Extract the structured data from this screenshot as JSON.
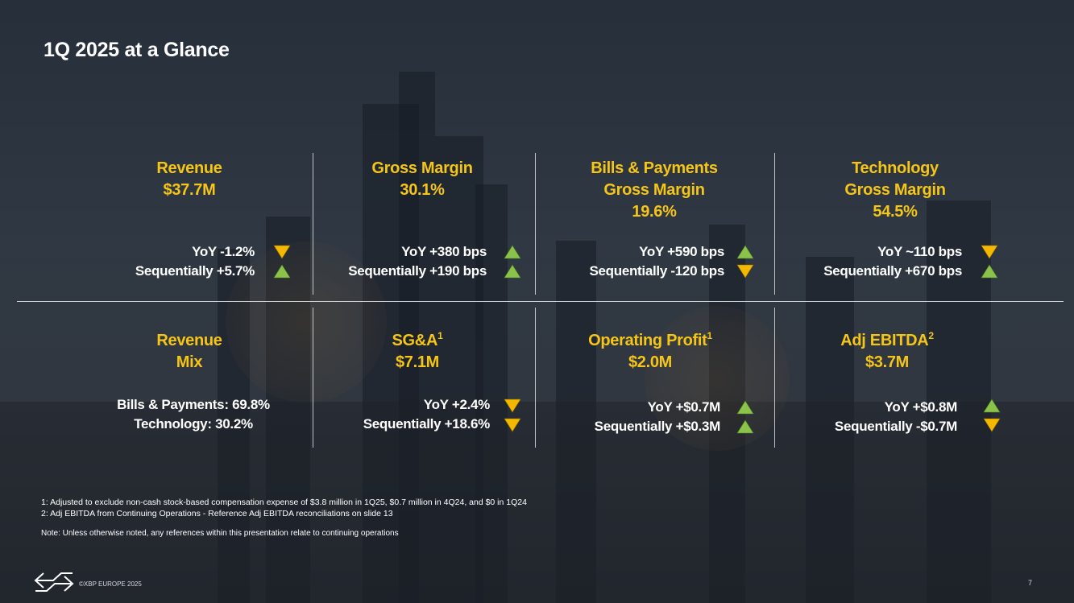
{
  "title": "1Q 2025 at a Glance",
  "colors": {
    "accent": "#f5c518",
    "up": "#8bc34a",
    "down": "#f5b800",
    "text": "#ffffff"
  },
  "cards": {
    "revenue": {
      "heading": [
        "Revenue",
        "$37.7M"
      ],
      "metrics": [
        {
          "text": "YoY -1.2%",
          "direction": "down"
        },
        {
          "text": "Sequentially +5.7%",
          "direction": "up"
        }
      ]
    },
    "gross_margin": {
      "heading": [
        "Gross Margin",
        "30.1%"
      ],
      "metrics": [
        {
          "text": "YoY  +380 bps",
          "direction": "up"
        },
        {
          "text": "Sequentially +190 bps",
          "direction": "up"
        }
      ]
    },
    "bills_payments": {
      "heading": [
        "Bills & Payments",
        "Gross Margin",
        "19.6%"
      ],
      "metrics": [
        {
          "text": "YoY  +590 bps",
          "direction": "up"
        },
        {
          "text": "Sequentially -120 bps",
          "direction": "down"
        }
      ]
    },
    "technology": {
      "heading": [
        "Technology",
        "Gross Margin",
        "54.5%"
      ],
      "metrics": [
        {
          "text": "YoY  ~110 bps",
          "direction": "down"
        },
        {
          "text": "Sequentially +670 bps",
          "direction": "up"
        }
      ]
    },
    "revenue_mix": {
      "heading": [
        "Revenue",
        "Mix"
      ],
      "lines": [
        "Bills & Payments: 69.8%",
        "Technology: 30.2%"
      ]
    },
    "sga": {
      "heading_label": "SG&A",
      "heading_sup": "1",
      "heading_value": "$7.1M",
      "metrics": [
        {
          "text": "YoY +2.4%",
          "direction": "down"
        },
        {
          "text": "Sequentially +18.6%",
          "direction": "down"
        }
      ]
    },
    "operating_profit": {
      "heading_label": "Operating Profit",
      "heading_sup": "1",
      "heading_value": "$2.0M",
      "metrics": [
        {
          "text": "YoY +$0.7M",
          "direction": "up"
        },
        {
          "text": "Sequentially +$0.3M",
          "direction": "up"
        }
      ]
    },
    "adj_ebitda": {
      "heading_label": "Adj EBITDA",
      "heading_sup": "2",
      "heading_value": "$3.7M",
      "metrics": [
        {
          "text": "YoY  +$0.8M",
          "direction": "up"
        },
        {
          "text": "Sequentially -$0.7M",
          "direction": "down"
        }
      ]
    }
  },
  "footnotes": [
    "1: Adjusted to exclude non-cash stock-based compensation expense of $3.8 million in 1Q25, $0.7 million in 4Q24, and $0 in 1Q24",
    "2: Adj EBITDA from Continuing Operations - Reference Adj EBITDA reconciliations on slide 13"
  ],
  "note": "Note: Unless otherwise noted, any references within this presentation relate to continuing operations",
  "footer": {
    "copyright": "©XBP EUROPE 2025",
    "page": "7",
    "logo_icon": "xbp-logo-icon"
  }
}
